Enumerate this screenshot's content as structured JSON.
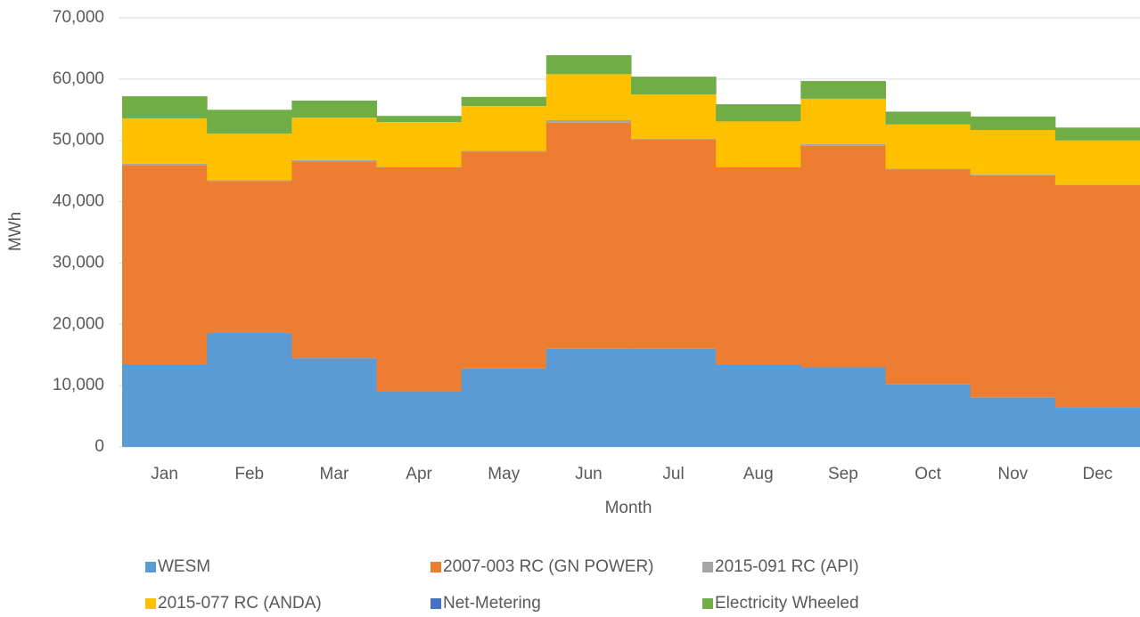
{
  "chart_data": {
    "type": "stacked_step_area",
    "x_label": "Month",
    "y_label": "MWh",
    "categories": [
      "Jan",
      "Feb",
      "Mar",
      "Apr",
      "May",
      "Jun",
      "Jul",
      "Aug",
      "Sep",
      "Oct",
      "Nov",
      "Dec"
    ],
    "series": [
      {
        "name": "WESM",
        "color": "#5b9bd5",
        "values": [
          13500,
          18600,
          14500,
          9000,
          12800,
          16000,
          16000,
          13500,
          13000,
          10200,
          8100,
          6400
        ]
      },
      {
        "name": "2007-003 RC (GN POWER)",
        "color": "#ed7d31",
        "values": [
          32500,
          24800,
          32100,
          36600,
          35400,
          36900,
          34200,
          32100,
          36100,
          35100,
          36200,
          36300
        ]
      },
      {
        "name": "2015-091 RC (API)",
        "color": "#a5a5a5",
        "values": [
          200,
          100,
          200,
          100,
          100,
          400,
          100,
          100,
          300,
          100,
          100,
          100
        ]
      },
      {
        "name": "2015-077 RC (ANDA)",
        "color": "#ffc000",
        "values": [
          7400,
          7600,
          6900,
          7300,
          7300,
          7500,
          7200,
          7400,
          7400,
          7200,
          7300,
          7200
        ]
      },
      {
        "name": "Net-Metering",
        "color": "#4472c4",
        "values": [
          0,
          0,
          0,
          0,
          0,
          0,
          0,
          0,
          0,
          0,
          0,
          0
        ]
      },
      {
        "name": "Electricity Wheeled",
        "color": "#70ad47",
        "values": [
          3600,
          3900,
          2800,
          1000,
          1500,
          3100,
          2900,
          2800,
          2900,
          2100,
          2200,
          2100
        ]
      }
    ],
    "ylim": [
      0,
      70000
    ],
    "yticks": [
      0,
      {
        "value": 10000,
        "label": "10,000"
      },
      {
        "value": 20000,
        "label": "20,000"
      },
      {
        "value": 30000,
        "label": "30,000"
      },
      {
        "value": 40000,
        "label": "40,000"
      },
      {
        "value": 50000,
        "label": "50,000"
      },
      {
        "value": 60000,
        "label": "60,000"
      },
      {
        "value": 70000,
        "label": "70,000"
      }
    ],
    "grid": true,
    "legend": "bottom"
  }
}
